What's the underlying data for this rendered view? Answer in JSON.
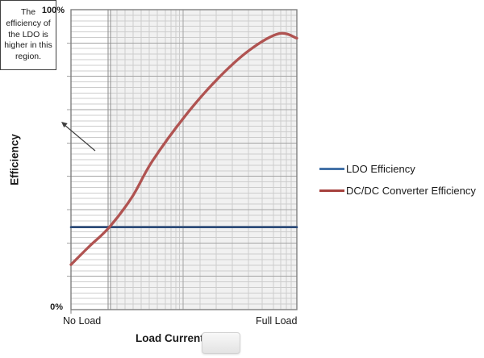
{
  "chart": {
    "y_axis_title": "Efficiency",
    "x_axis_title": "Load Current",
    "y_max_label": "100%",
    "y_min_label": "0%",
    "x_min_label": "No Load",
    "x_max_label": "Full Load"
  },
  "annotation": {
    "lines": [
      "The",
      "efficiency of",
      "the LDO is",
      "higher in this",
      "region."
    ]
  },
  "legend": {
    "items": [
      {
        "label": "LDO Efficiency",
        "color": "#4472A8"
      },
      {
        "label": "DC/DC Converter Efficiency",
        "color": "#A6413D"
      }
    ]
  },
  "chart_data": {
    "type": "line",
    "title": "",
    "xlabel": "Load Current",
    "ylabel": "Efficiency",
    "x_range_labels": [
      "No Load",
      "Full Load"
    ],
    "ylim": [
      0,
      100
    ],
    "y_unit": "%",
    "grid": "fine minor grid, shaded region right of crossover",
    "legend_position": "right",
    "annotation_text": "The efficiency of the LDO is higher in this region.",
    "crossover_load_fraction": 0.17,
    "series": [
      {
        "name": "LDO Efficiency",
        "color": "#2A4A78",
        "x": [
          0,
          1
        ],
        "values": [
          27.5,
          27.5
        ]
      },
      {
        "name": "DC/DC Converter Efficiency",
        "color": "#B05351",
        "x": [
          0,
          0.08,
          0.17,
          0.27,
          0.36,
          0.51,
          0.65,
          0.79,
          0.92,
          1.0
        ],
        "values": [
          15,
          21,
          27.5,
          37.5,
          49.5,
          65,
          77,
          86.5,
          92,
          90.5
        ]
      }
    ]
  }
}
